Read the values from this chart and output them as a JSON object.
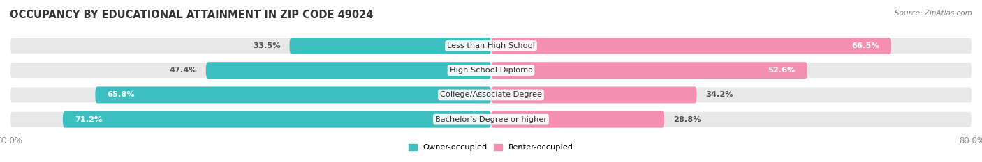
{
  "title": "OCCUPANCY BY EDUCATIONAL ATTAINMENT IN ZIP CODE 49024",
  "source": "Source: ZipAtlas.com",
  "categories": [
    "Less than High School",
    "High School Diploma",
    "College/Associate Degree",
    "Bachelor's Degree or higher"
  ],
  "owner_values": [
    33.5,
    47.4,
    65.8,
    71.2
  ],
  "renter_values": [
    66.5,
    52.6,
    34.2,
    28.8
  ],
  "owner_color": "#3DBFBF",
  "renter_color": "#F48FB1",
  "bar_background": "#E8E8E8",
  "xlim": [
    -80,
    80
  ],
  "owner_label": "Owner-occupied",
  "renter_label": "Renter-occupied",
  "bar_height": 0.68,
  "background_color": "#FFFFFF",
  "title_fontsize": 10.5,
  "axis_fontsize": 8.5,
  "label_fontsize": 8.2,
  "value_fontsize": 8.2
}
